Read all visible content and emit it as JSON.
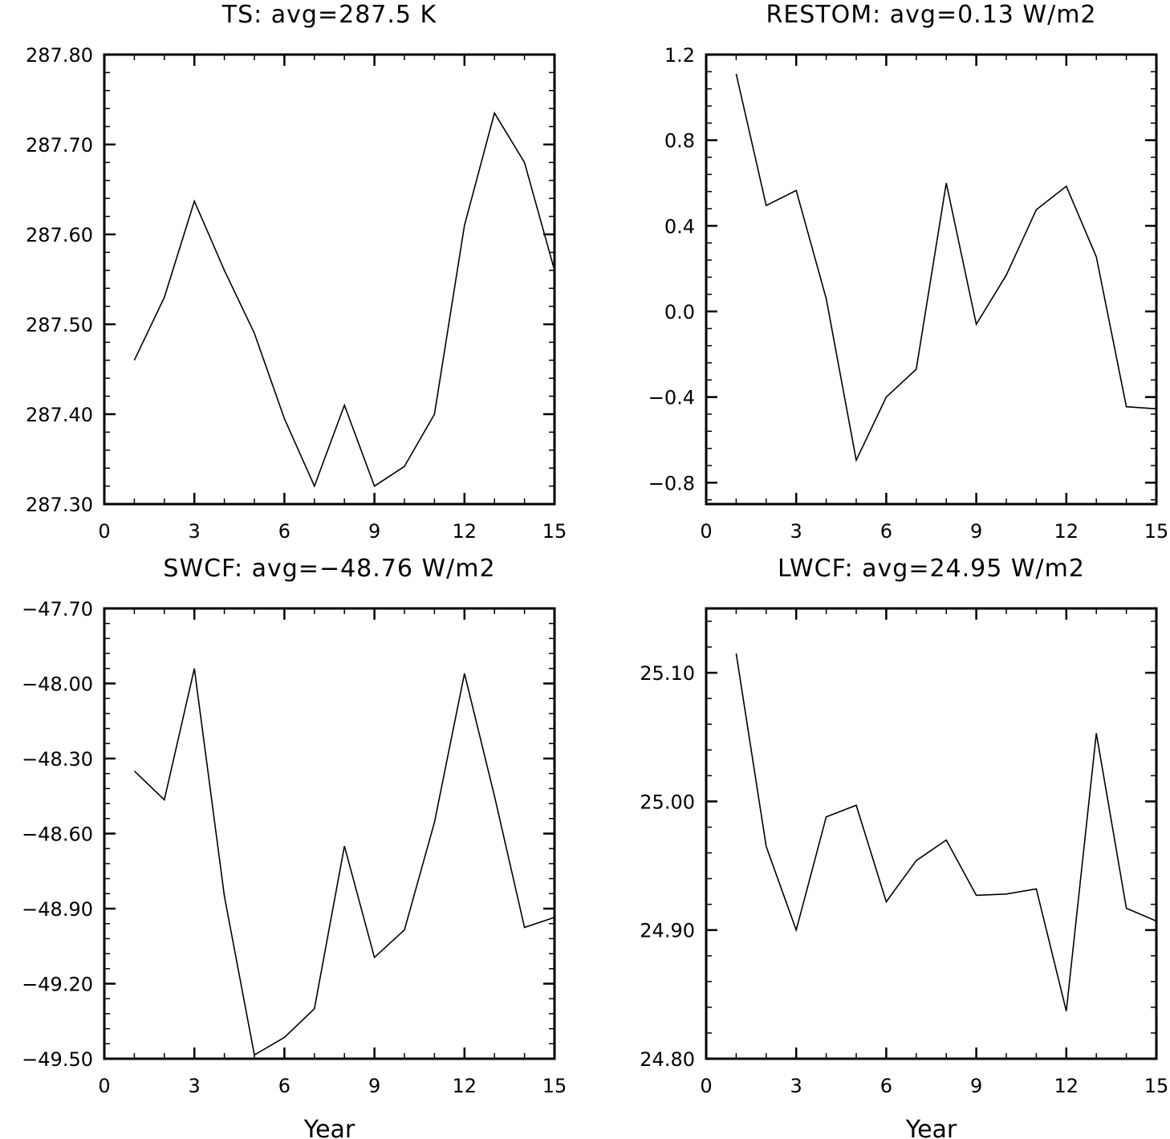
{
  "chart_data": [
    {
      "type": "line",
      "title": "TS: avg=287.5 K",
      "xlabel": "",
      "ylabel": "",
      "xlim": [
        0,
        15
      ],
      "ylim": [
        287.3,
        287.8
      ],
      "xticks": [
        0,
        3,
        6,
        9,
        12,
        15
      ],
      "xtick_labels": [
        "0",
        "3",
        "6",
        "9",
        "12",
        "15"
      ],
      "yticks": [
        287.3,
        287.4,
        287.5,
        287.6,
        287.7,
        287.8
      ],
      "ytick_labels": [
        "287.30",
        "287.40",
        "287.50",
        "287.60",
        "287.70",
        "287.80"
      ],
      "x": [
        1,
        2,
        3,
        4,
        5,
        6,
        7,
        8,
        9,
        10,
        11,
        12,
        13,
        14,
        15
      ],
      "values": [
        287.46,
        287.53,
        287.637,
        287.56,
        287.49,
        287.395,
        287.32,
        287.41,
        287.32,
        287.342,
        287.4,
        287.61,
        287.735,
        287.68,
        287.56
      ],
      "grid": false
    },
    {
      "type": "line",
      "title": "RESTOM: avg=0.13 W/m2",
      "xlabel": "",
      "ylabel": "",
      "xlim": [
        0,
        15
      ],
      "ylim": [
        -0.9,
        1.2
      ],
      "xticks": [
        0,
        3,
        6,
        9,
        12,
        15
      ],
      "xtick_labels": [
        "0",
        "3",
        "6",
        "9",
        "12",
        "15"
      ],
      "yticks": [
        -0.8,
        -0.4,
        0.0,
        0.4,
        0.8,
        1.2
      ],
      "ytick_labels": [
        "−0.8",
        "−0.4",
        "0.0",
        "0.4",
        "0.8",
        "1.2"
      ],
      "x": [
        1,
        2,
        3,
        4,
        5,
        6,
        7,
        8,
        9,
        10,
        11,
        12,
        13,
        14,
        15
      ],
      "values": [
        1.11,
        0.495,
        0.565,
        0.06,
        -0.695,
        -0.4,
        -0.27,
        0.6,
        -0.06,
        0.17,
        0.475,
        0.585,
        0.255,
        -0.445,
        -0.455
      ],
      "grid": false
    },
    {
      "type": "line",
      "title": "SWCF: avg=−48.76 W/m2",
      "xlabel": "Year",
      "ylabel": "",
      "xlim": [
        0,
        15
      ],
      "ylim": [
        -49.5,
        -47.7
      ],
      "xticks": [
        0,
        3,
        6,
        9,
        12,
        15
      ],
      "xtick_labels": [
        "0",
        "3",
        "6",
        "9",
        "12",
        "15"
      ],
      "yticks": [
        -49.5,
        -49.2,
        -48.9,
        -48.6,
        -48.3,
        -48.0,
        -47.7
      ],
      "ytick_labels": [
        "−49.50",
        "−49.20",
        "−48.90",
        "−48.60",
        "−48.30",
        "−48.00",
        "−47.70"
      ],
      "x": [
        1,
        2,
        3,
        4,
        5,
        6,
        7,
        8,
        9,
        10,
        11,
        12,
        13,
        14,
        15
      ],
      "values": [
        -48.35,
        -48.465,
        -47.94,
        -48.85,
        -49.485,
        -49.415,
        -49.3,
        -48.65,
        -49.095,
        -48.985,
        -48.555,
        -47.96,
        -48.45,
        -48.975,
        -48.935
      ],
      "grid": false
    },
    {
      "type": "line",
      "title": "LWCF: avg=24.95 W/m2",
      "xlabel": "Year",
      "ylabel": "",
      "xlim": [
        0,
        15
      ],
      "ylim": [
        24.8,
        25.15
      ],
      "xticks": [
        0,
        3,
        6,
        9,
        12,
        15
      ],
      "xtick_labels": [
        "0",
        "3",
        "6",
        "9",
        "12",
        "15"
      ],
      "yticks": [
        24.8,
        24.9,
        25.0,
        25.1
      ],
      "ytick_labels": [
        "24.80",
        "24.90",
        "25.00",
        "25.10"
      ],
      "x": [
        1,
        2,
        3,
        4,
        5,
        6,
        7,
        8,
        9,
        10,
        11,
        12,
        13,
        14,
        15
      ],
      "values": [
        25.115,
        24.965,
        24.9,
        24.988,
        24.997,
        24.922,
        24.954,
        24.97,
        24.927,
        24.928,
        24.932,
        24.837,
        25.053,
        24.917,
        24.907
      ],
      "grid": false
    }
  ]
}
